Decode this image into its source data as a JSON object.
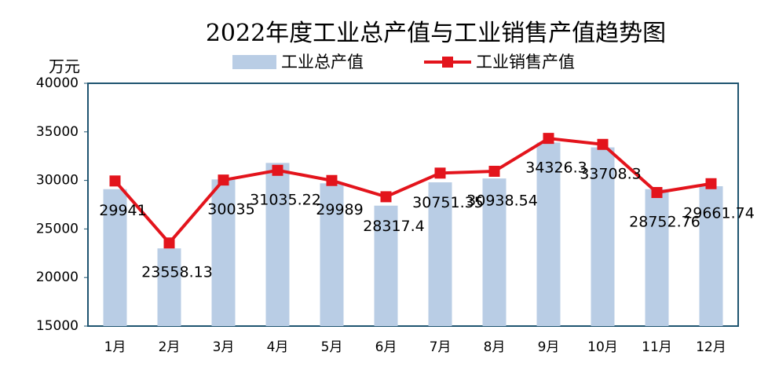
{
  "chart_data": {
    "type": "combo",
    "title": "2022年度工业总产值与工业销售产值趋势图",
    "y_label": "万元",
    "categories": [
      "1月",
      "2月",
      "3月",
      "4月",
      "5月",
      "6月",
      "7月",
      "8月",
      "9月",
      "10月",
      "11月",
      "12月"
    ],
    "series": [
      {
        "name": "工业总产值",
        "type": "bar",
        "color": "#b9cde5",
        "values": [
          29100,
          23000,
          30100,
          31800,
          29700,
          27400,
          29800,
          30200,
          33900,
          33400,
          29100,
          29400
        ]
      },
      {
        "name": "工业销售产值",
        "type": "line",
        "color": "#e3141c",
        "values": [
          29941,
          23558.13,
          30035,
          31035.22,
          29989,
          28317.4,
          30751.35,
          30938.54,
          34326.3,
          33708.3,
          28752.76,
          29661.74
        ],
        "data_labels": true
      }
    ],
    "ylim": [
      15000,
      40000
    ],
    "yticks": [
      15000,
      20000,
      25000,
      30000,
      35000,
      40000
    ],
    "grid": false
  }
}
